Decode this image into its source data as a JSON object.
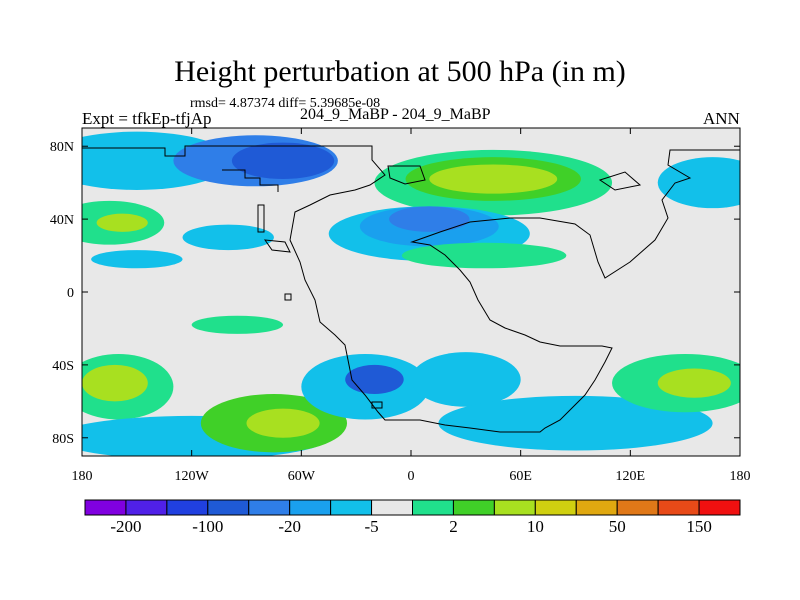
{
  "title": "Height perturbation at 500 hPa (in m)",
  "stats_text": "rmsd= 4.87374 diff= 5.39685e-08",
  "left_label": "Expt = tfkEp-tfjAp",
  "center_label": "204_9_MaBP - 204_9_MaBP",
  "right_label": "ANN",
  "chart_data": {
    "type": "heatmap",
    "title": "Height perturbation at 500 hPa (in m)",
    "x_axis": {
      "range": [
        -180,
        180
      ],
      "ticks": [
        -180,
        -120,
        -60,
        0,
        60,
        120,
        180
      ],
      "tick_labels": [
        "180",
        "120W",
        "60W",
        "0",
        "60E",
        "120E",
        "180"
      ]
    },
    "y_axis": {
      "range": [
        -90,
        90
      ],
      "ticks": [
        80,
        40,
        0,
        -40,
        -80
      ],
      "tick_labels": [
        "80N",
        "40N",
        "0",
        "40S",
        "80S"
      ]
    },
    "colorbar": {
      "colors": [
        "#8000e0",
        "#5020e8",
        "#2040e0",
        "#1f5ad6",
        "#2f7ee8",
        "#1aa0ee",
        "#12c0ea",
        "#e8e8e8",
        "#20e08c",
        "#40d028",
        "#a8e020",
        "#d0d010",
        "#e0a810",
        "#e07818",
        "#e84a18",
        "#f01010"
      ],
      "tick_labels": [
        "-200",
        "-100",
        "-20",
        "-5",
        "2",
        "10",
        "50",
        "150"
      ]
    },
    "background_color": "#e8e8e8",
    "regions": [
      {
        "lon": -150,
        "lat": 72,
        "rlon": 52,
        "rlat": 16,
        "color": "#12c0ea"
      },
      {
        "lon": -85,
        "lat": 72,
        "rlon": 45,
        "rlat": 14,
        "color": "#2f7ee8"
      },
      {
        "lon": -70,
        "lat": 72,
        "rlon": 28,
        "rlat": 10,
        "color": "#1f5ad6"
      },
      {
        "lon": -165,
        "lat": 38,
        "rlon": 30,
        "rlat": 12,
        "color": "#20e08c"
      },
      {
        "lon": -158,
        "lat": 38,
        "rlon": 14,
        "rlat": 5,
        "color": "#a8e020"
      },
      {
        "lon": -100,
        "lat": 30,
        "rlon": 25,
        "rlat": 7,
        "color": "#12c0ea"
      },
      {
        "lon": -150,
        "lat": 18,
        "rlon": 25,
        "rlat": 5,
        "color": "#12c0ea"
      },
      {
        "lon": 45,
        "lat": 60,
        "rlon": 65,
        "rlat": 18,
        "color": "#20e08c"
      },
      {
        "lon": 45,
        "lat": 62,
        "rlon": 48,
        "rlat": 12,
        "color": "#40d028"
      },
      {
        "lon": 45,
        "lat": 62,
        "rlon": 35,
        "rlat": 8,
        "color": "#a8e020"
      },
      {
        "lon": 10,
        "lat": 32,
        "rlon": 55,
        "rlat": 15,
        "color": "#12c0ea"
      },
      {
        "lon": 10,
        "lat": 36,
        "rlon": 38,
        "rlat": 11,
        "color": "#1aa0ee"
      },
      {
        "lon": 10,
        "lat": 40,
        "rlon": 22,
        "rlat": 7,
        "color": "#2f7ee8"
      },
      {
        "lon": 40,
        "lat": 20,
        "rlon": 45,
        "rlat": 7,
        "color": "#20e08c"
      },
      {
        "lon": 165,
        "lat": 60,
        "rlon": 30,
        "rlat": 14,
        "color": "#12c0ea"
      },
      {
        "lon": -160,
        "lat": -52,
        "rlon": 30,
        "rlat": 18,
        "color": "#20e08c"
      },
      {
        "lon": -162,
        "lat": -50,
        "rlon": 18,
        "rlat": 10,
        "color": "#a8e020"
      },
      {
        "lon": -120,
        "lat": -80,
        "rlon": 75,
        "rlat": 12,
        "color": "#12c0ea"
      },
      {
        "lon": -75,
        "lat": -72,
        "rlon": 40,
        "rlat": 16,
        "color": "#40d028"
      },
      {
        "lon": -70,
        "lat": -72,
        "rlon": 20,
        "rlat": 8,
        "color": "#a8e020"
      },
      {
        "lon": -95,
        "lat": -18,
        "rlon": 25,
        "rlat": 5,
        "color": "#20e08c"
      },
      {
        "lon": -25,
        "lat": -52,
        "rlon": 35,
        "rlat": 18,
        "color": "#12c0ea"
      },
      {
        "lon": -20,
        "lat": -48,
        "rlon": 16,
        "rlat": 8,
        "color": "#1f5ad6"
      },
      {
        "lon": 30,
        "lat": -48,
        "rlon": 30,
        "rlat": 15,
        "color": "#12c0ea"
      },
      {
        "lon": 90,
        "lat": -72,
        "rlon": 75,
        "rlat": 15,
        "color": "#12c0ea"
      },
      {
        "lon": 150,
        "lat": -50,
        "rlon": 40,
        "rlat": 16,
        "color": "#20e08c"
      },
      {
        "lon": 155,
        "lat": -50,
        "rlon": 20,
        "rlat": 8,
        "color": "#a8e020"
      }
    ]
  }
}
